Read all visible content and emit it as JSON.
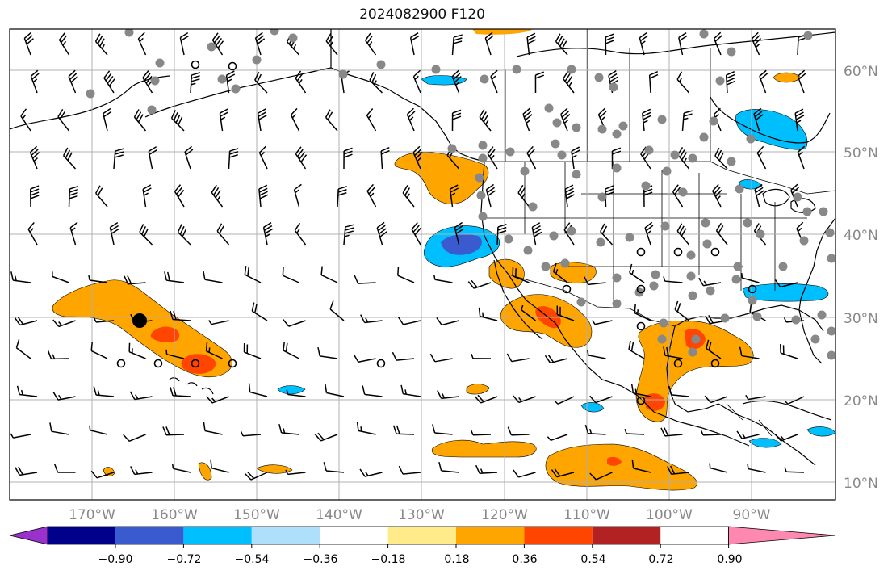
{
  "title": "2024082900 F120",
  "map": {
    "longitude_labels": [
      "170°W",
      "160°W",
      "150°W",
      "140°W",
      "130°W",
      "120°W",
      "110°W",
      "100°W",
      "90°W"
    ],
    "latitude_labels": [
      "60°N",
      "50°N",
      "40°N",
      "30°N",
      "20°N",
      "10°N"
    ],
    "label_color": "#888888",
    "grid_color": "#b0b0b0"
  },
  "colorbar": {
    "tick_labels": [
      "−0.90",
      "−0.72",
      "−0.54",
      "−0.36",
      "−0.18",
      "0.18",
      "0.36",
      "0.54",
      "0.72",
      "0.90"
    ],
    "colors": [
      "#9932cc",
      "#00008b",
      "#3a5bd0",
      "#00bfff",
      "#afe0fb",
      "#ffffff",
      "#ffeb8a",
      "#ffa500",
      "#ff4500",
      "#b22222",
      "#ff88b0"
    ]
  },
  "fill_colors": {
    "orange": "#ffa500",
    "red_orange": "#ff4500",
    "blue": "#00bfff",
    "dark_blue": "#3a5bd0",
    "light_blue": "#afe0fb"
  }
}
